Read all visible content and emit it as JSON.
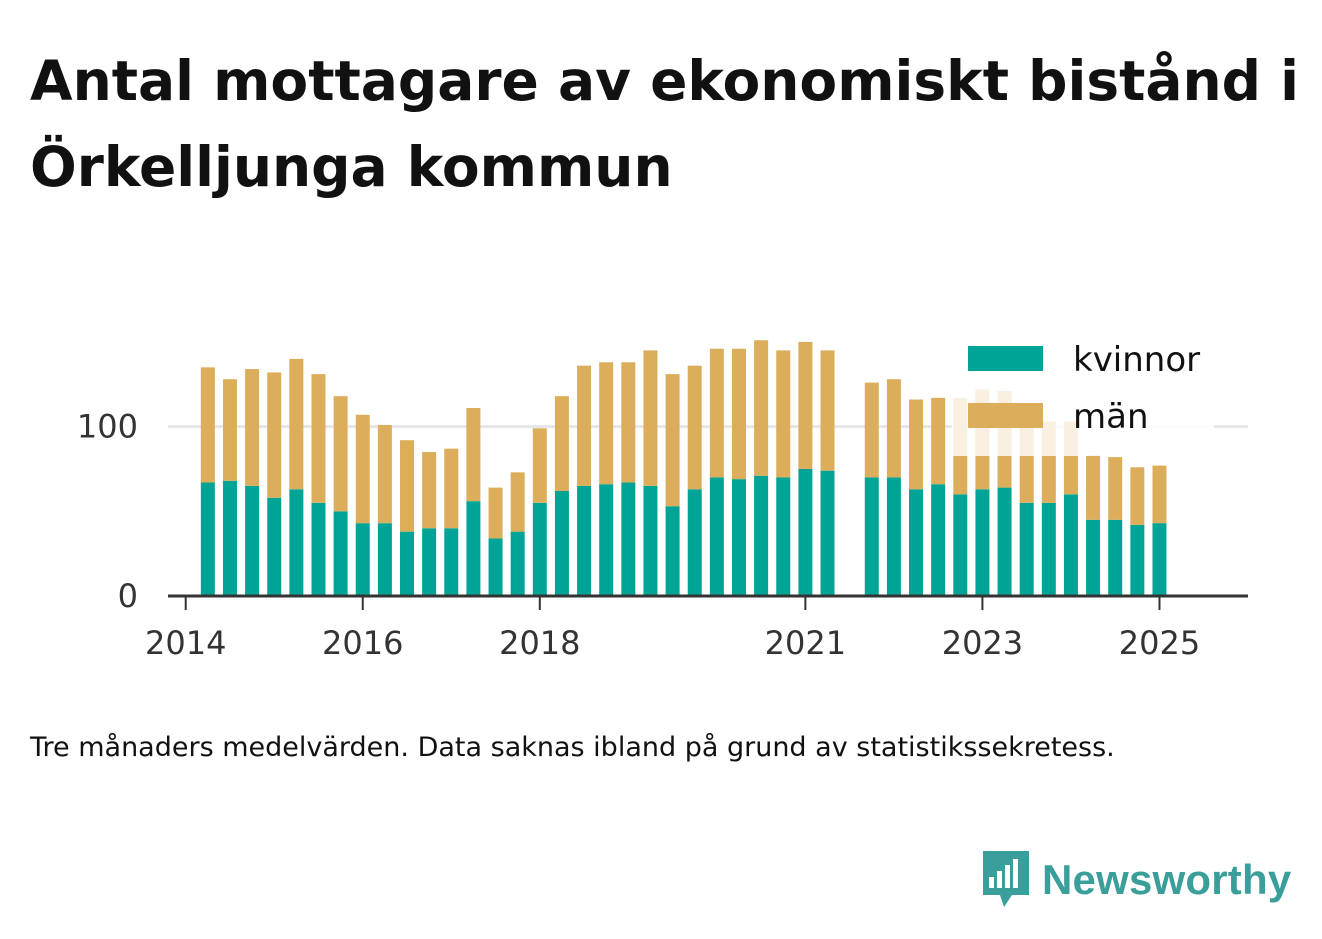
{
  "title": "Antal mottagare av ekonomiskt bistånd i Örkelljunga kommun",
  "footnote": "Tre månaders medelvärden. Data saknas ibland på grund av statistikssekretess.",
  "brand": {
    "name": "Newsworthy",
    "icon": "newsworthy-chart-icon"
  },
  "colors": {
    "kvinnor": "#00a496",
    "man": "#dcae5b",
    "grid": "#e6e6e6",
    "axis": "#333333",
    "brand": "#3a9e9a"
  },
  "chart_data": {
    "type": "bar",
    "stacked": true,
    "x_unit": "year",
    "xlim": [
      2013.8,
      2026.0
    ],
    "ylim": [
      0,
      160
    ],
    "y_ticks": [
      0,
      100
    ],
    "x_ticks": [
      2014,
      2016,
      2018,
      2021,
      2023,
      2025
    ],
    "grid": "horizontal",
    "legend_position": "top-right",
    "x": [
      2014.25,
      2014.5,
      2014.75,
      2015.0,
      2015.25,
      2015.5,
      2015.75,
      2016.0,
      2016.25,
      2016.5,
      2016.75,
      2017.0,
      2017.25,
      2017.5,
      2017.75,
      2018.0,
      2018.25,
      2018.5,
      2018.75,
      2019.0,
      2019.25,
      2019.5,
      2019.75,
      2020.0,
      2020.25,
      2020.5,
      2020.75,
      2021.0,
      2021.25,
      2021.75,
      2022.0,
      2022.25,
      2022.5,
      2022.75,
      2023.0,
      2023.25,
      2023.5,
      2023.75,
      2024.0,
      2024.25,
      2024.5,
      2024.75,
      2025.0
    ],
    "series": [
      {
        "name": "kvinnor",
        "color": "#00a496",
        "values": [
          67,
          68,
          65,
          58,
          63,
          55,
          50,
          43,
          43,
          38,
          40,
          40,
          56,
          34,
          38,
          55,
          62,
          65,
          66,
          67,
          65,
          53,
          63,
          70,
          69,
          71,
          70,
          75,
          74,
          70,
          70,
          63,
          66,
          60,
          63,
          64,
          55,
          55,
          60,
          45,
          45,
          42,
          43
        ]
      },
      {
        "name": "män",
        "color": "#dcae5b",
        "values": [
          68,
          60,
          69,
          74,
          77,
          76,
          68,
          64,
          58,
          54,
          45,
          47,
          55,
          30,
          35,
          44,
          56,
          71,
          72,
          71,
          80,
          78,
          73,
          76,
          77,
          80,
          75,
          75,
          71,
          56,
          58,
          53,
          51,
          57,
          59,
          57,
          48,
          48,
          43,
          38,
          37,
          34,
          34
        ]
      }
    ]
  }
}
